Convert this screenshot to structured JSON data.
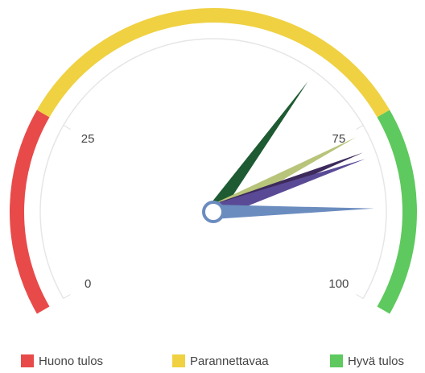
{
  "chart_data": {
    "type": "gauge",
    "ylim": [
      0,
      100
    ],
    "yticks": [
      0,
      25,
      75,
      100
    ],
    "bands": [
      {
        "name": "Huono tulos",
        "from": 0,
        "to": 25,
        "color": "#e84a4a"
      },
      {
        "name": "Parannettavaa",
        "from": 25,
        "to": 75,
        "color": "#efd142"
      },
      {
        "name": "Hyvä tulos",
        "from": 75,
        "to": 100,
        "color": "#5ec95e"
      }
    ],
    "needles": [
      {
        "value": 65,
        "color": "#1e5a32"
      },
      {
        "value": 76,
        "color": "#b8c47a"
      },
      {
        "value": 78.5,
        "color": "#3d2a5c"
      },
      {
        "value": 79.5,
        "color": "#5a4a96"
      },
      {
        "value": 87,
        "color": "#6b8cbf"
      }
    ],
    "legend": "bottom"
  }
}
